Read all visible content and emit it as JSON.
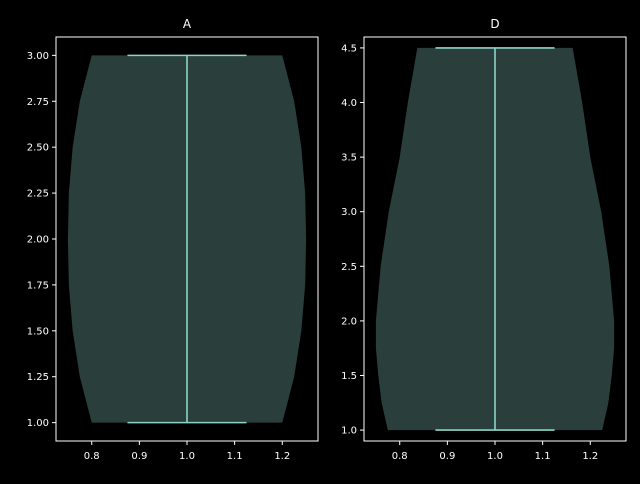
{
  "chart_data": [
    {
      "type": "violin",
      "title": "A",
      "xlabel": "",
      "ylabel": "",
      "xlim": [
        0.725,
        1.275
      ],
      "ylim": [
        0.9,
        3.1
      ],
      "xticks": [
        0.8,
        0.9,
        1.0,
        1.1,
        1.2
      ],
      "xtick_labels": [
        "0.8",
        "0.9",
        "1.0",
        "1.1",
        "1.2"
      ],
      "yticks": [
        1.0,
        1.25,
        1.5,
        1.75,
        2.0,
        2.25,
        2.5,
        2.75,
        3.0
      ],
      "ytick_labels": [
        "1.00",
        "1.25",
        "1.50",
        "1.75",
        "2.00",
        "2.25",
        "2.50",
        "2.75",
        "3.00"
      ],
      "grid": false,
      "violin": {
        "position": 1.0,
        "min": 1.0,
        "max": 3.0,
        "cap_halfwidth": 0.125,
        "density_profile": [
          {
            "y": 1.0,
            "halfwidth": 0.2
          },
          {
            "y": 1.25,
            "halfwidth": 0.225
          },
          {
            "y": 1.5,
            "halfwidth": 0.24
          },
          {
            "y": 1.75,
            "halfwidth": 0.248
          },
          {
            "y": 2.0,
            "halfwidth": 0.25
          },
          {
            "y": 2.25,
            "halfwidth": 0.248
          },
          {
            "y": 2.5,
            "halfwidth": 0.24
          },
          {
            "y": 2.75,
            "halfwidth": 0.225
          },
          {
            "y": 3.0,
            "halfwidth": 0.2
          }
        ]
      }
    },
    {
      "type": "violin",
      "title": "D",
      "xlabel": "",
      "ylabel": "",
      "xlim": [
        0.725,
        1.275
      ],
      "ylim": [
        0.9,
        4.6
      ],
      "xticks": [
        0.8,
        0.9,
        1.0,
        1.1,
        1.2
      ],
      "xtick_labels": [
        "0.8",
        "0.9",
        "1.0",
        "1.1",
        "1.2"
      ],
      "yticks": [
        1.0,
        1.5,
        2.0,
        2.5,
        3.0,
        3.5,
        4.0,
        4.5
      ],
      "ytick_labels": [
        "1.0",
        "1.5",
        "2.0",
        "2.5",
        "3.0",
        "3.5",
        "4.0",
        "4.5"
      ],
      "grid": false,
      "violin": {
        "position": 1.0,
        "min": 1.0,
        "max": 4.5,
        "cap_halfwidth": 0.125,
        "density_profile": [
          {
            "y": 1.0,
            "halfwidth": 0.225
          },
          {
            "y": 1.25,
            "halfwidth": 0.238
          },
          {
            "y": 1.5,
            "halfwidth": 0.245
          },
          {
            "y": 1.75,
            "halfwidth": 0.25
          },
          {
            "y": 2.0,
            "halfwidth": 0.25
          },
          {
            "y": 2.5,
            "halfwidth": 0.24
          },
          {
            "y": 3.0,
            "halfwidth": 0.223
          },
          {
            "y": 3.5,
            "halfwidth": 0.2
          },
          {
            "y": 4.0,
            "halfwidth": 0.183
          },
          {
            "y": 4.5,
            "halfwidth": 0.163
          }
        ]
      }
    }
  ],
  "colors": {
    "background": "#000000",
    "axes": "#ffffff",
    "text": "#ffffff",
    "violin_fill": "#2a3f3b",
    "violin_lines": "#8dd3c7"
  }
}
